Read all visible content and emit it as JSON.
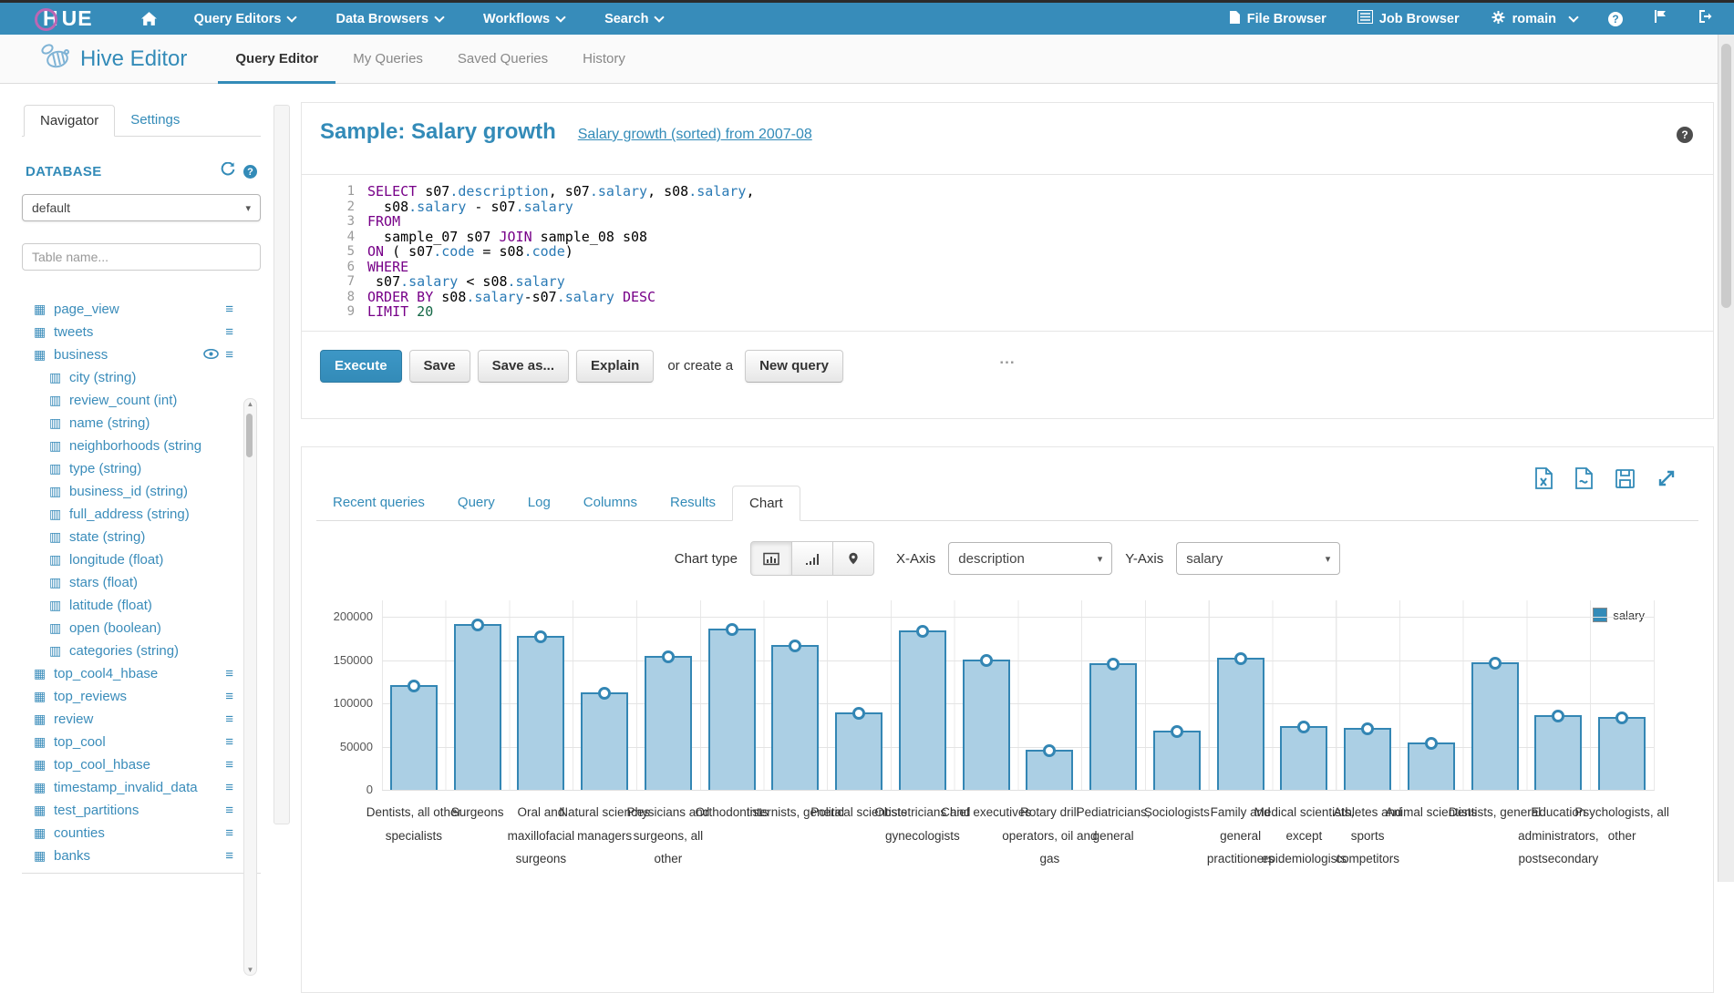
{
  "topbar": {
    "logo_h": "H",
    "logo_rest": "UE",
    "menus": [
      "Query Editors",
      "Data Browsers",
      "Workflows",
      "Search"
    ],
    "file_browser": "File Browser",
    "job_browser": "Job Browser",
    "user": "romain",
    "help_glyph": "?"
  },
  "header": {
    "app_title": "Hive Editor",
    "tabs": [
      "Query Editor",
      "My Queries",
      "Saved Queries",
      "History"
    ],
    "active_index": 0
  },
  "sidebar": {
    "tabs": [
      "Navigator",
      "Settings"
    ],
    "database_label": "DATABASE",
    "database_value": "default",
    "search_placeholder": "Table name...",
    "tree": [
      {
        "t": "table",
        "label": "page_view",
        "menu": true
      },
      {
        "t": "table",
        "label": "tweets",
        "menu": true
      },
      {
        "t": "table",
        "label": "business",
        "menu": true,
        "eye": true
      },
      {
        "t": "col",
        "label": "city (string)"
      },
      {
        "t": "col",
        "label": "review_count (int)"
      },
      {
        "t": "col",
        "label": "name (string)"
      },
      {
        "t": "col",
        "label": "neighborhoods (string"
      },
      {
        "t": "col",
        "label": "type (string)"
      },
      {
        "t": "col",
        "label": "business_id (string)"
      },
      {
        "t": "col",
        "label": "full_address (string)"
      },
      {
        "t": "col",
        "label": "state (string)"
      },
      {
        "t": "col",
        "label": "longitude (float)"
      },
      {
        "t": "col",
        "label": "stars (float)"
      },
      {
        "t": "col",
        "label": "latitude (float)"
      },
      {
        "t": "col",
        "label": "open (boolean)"
      },
      {
        "t": "col",
        "label": "categories (string)"
      },
      {
        "t": "table",
        "label": "top_cool4_hbase",
        "menu": true
      },
      {
        "t": "table",
        "label": "top_reviews",
        "menu": true
      },
      {
        "t": "table",
        "label": "review",
        "menu": true
      },
      {
        "t": "table",
        "label": "top_cool",
        "menu": true
      },
      {
        "t": "table",
        "label": "top_cool_hbase",
        "menu": true
      },
      {
        "t": "table",
        "label": "timestamp_invalid_data",
        "menu": true
      },
      {
        "t": "table",
        "label": "test_partitions",
        "menu": true
      },
      {
        "t": "table",
        "label": "counties",
        "menu": true
      },
      {
        "t": "table",
        "label": "banks",
        "menu": true
      }
    ]
  },
  "query": {
    "title": "Sample: Salary growth",
    "subtitle": "Salary growth (sorted) from 2007-08",
    "help_glyph": "?",
    "code_lines": [
      [
        [
          "kw",
          "SELECT"
        ],
        [
          "pl",
          " s07"
        ],
        [
          "prop",
          ".description"
        ],
        [
          "pl",
          ", s07"
        ],
        [
          "prop",
          ".salary"
        ],
        [
          "pl",
          ", s08"
        ],
        [
          "prop",
          ".salary"
        ],
        [
          "pl",
          ","
        ]
      ],
      [
        [
          "pl",
          "  s08"
        ],
        [
          "prop",
          ".salary"
        ],
        [
          "pl",
          " - s07"
        ],
        [
          "prop",
          ".salary"
        ]
      ],
      [
        [
          "kw",
          "FROM"
        ]
      ],
      [
        [
          "pl",
          "  sample_07 s07 "
        ],
        [
          "kw",
          "JOIN"
        ],
        [
          "pl",
          " sample_08 s08"
        ]
      ],
      [
        [
          "kw",
          "ON"
        ],
        [
          "pl",
          " ( s07"
        ],
        [
          "prop",
          ".code"
        ],
        [
          "pl",
          " = s08"
        ],
        [
          "prop",
          ".code"
        ],
        [
          "pl",
          ")"
        ]
      ],
      [
        [
          "kw",
          "WHERE"
        ]
      ],
      [
        [
          "pl",
          " s07"
        ],
        [
          "prop",
          ".salary"
        ],
        [
          "pl",
          " < s08"
        ],
        [
          "prop",
          ".salary"
        ]
      ],
      [
        [
          "kw",
          "ORDER BY"
        ],
        [
          "pl",
          " s08"
        ],
        [
          "prop",
          ".salary"
        ],
        [
          "pl",
          "-s07"
        ],
        [
          "prop",
          ".salary"
        ],
        [
          "pl",
          " "
        ],
        [
          "kw",
          "DESC"
        ]
      ],
      [
        [
          "kw",
          "LIMIT"
        ],
        [
          "num",
          " 20"
        ]
      ]
    ],
    "buttons": [
      "Execute",
      "Save",
      "Save as...",
      "Explain"
    ],
    "or_text": "or create a",
    "new_query_label": "New query",
    "grip": "..."
  },
  "results": {
    "tabs": [
      "Recent queries",
      "Query",
      "Log",
      "Columns",
      "Results",
      "Chart"
    ],
    "active_index": 5,
    "controls": {
      "chart_type_label": "Chart type",
      "x_axis_label": "X-Axis",
      "x_axis_value": "description",
      "y_axis_label": "Y-Axis",
      "y_axis_value": "salary"
    }
  },
  "chart_data": {
    "type": "bar",
    "title": "",
    "xlabel": "",
    "ylabel": "",
    "legend_position": "top-right",
    "grid": true,
    "ylim": [
      0,
      200000
    ],
    "yticks": [
      0,
      50000,
      100000,
      150000,
      200000
    ],
    "series": [
      {
        "name": "salary"
      }
    ],
    "categories": [
      "Dentists, all other specialists",
      "Surgeons",
      "Oral and maxillofacial surgeons",
      "Natural sciences managers",
      "Physicians and surgeons, all other",
      "Orthodontists",
      "Internists, general",
      "Political scientists",
      "Obstetricians and gynecologists",
      "Chief executives",
      "Rotary drill operators, oil and gas",
      "Pediatricians, general",
      "Sociologists",
      "Family and general practitioners",
      "Medical scientists, except epidemiologists",
      "Athletes and sports competitors",
      "Animal scientists",
      "Dentists, general",
      "Education administrators, postsecondary",
      "Psychologists, all other"
    ],
    "values": [
      121000,
      192000,
      178000,
      113000,
      155000,
      186000,
      167000,
      90000,
      184000,
      151000,
      46000,
      146000,
      68000,
      153000,
      74000,
      72000,
      55000,
      147000,
      86000,
      84000
    ],
    "colors": {
      "bar_fill": "#abcfe4",
      "bar_border": "#3386b4",
      "legend_swatch": "#338bb8"
    }
  },
  "icons": {
    "table_glyph": "▦",
    "column_glyph": "▥",
    "menu_glyph": "≡",
    "caret_glyph": "▾",
    "scroll_up": "▲",
    "scroll_down": "▼"
  }
}
